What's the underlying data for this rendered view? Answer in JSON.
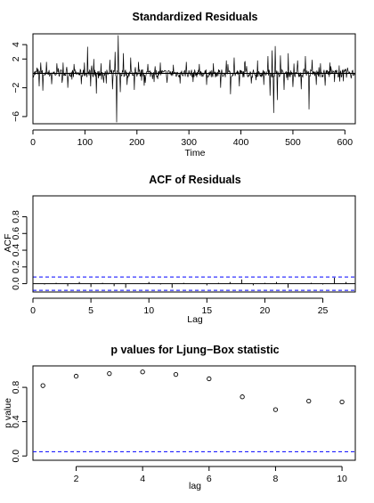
{
  "chart_data": [
    {
      "type": "line",
      "title": "Standardized Residuals",
      "xlabel": "Time",
      "ylabel": "",
      "xlim": [
        0,
        620
      ],
      "ylim": [
        -7,
        5.5
      ],
      "xticks": [
        0,
        100,
        200,
        300,
        400,
        500,
        600
      ],
      "yticks": [
        -6,
        -2,
        2,
        4
      ],
      "ytick_labels": [
        "−6",
        "−2",
        "2",
        "4"
      ],
      "reference_line": 0,
      "n": 620,
      "spikes": [
        {
          "x": 8,
          "y": 0.8
        },
        {
          "x": 12,
          "y": -1.8
        },
        {
          "x": 15,
          "y": 1.5
        },
        {
          "x": 19,
          "y": -2.4
        },
        {
          "x": 26,
          "y": 1.6
        },
        {
          "x": 36,
          "y": -1.5
        },
        {
          "x": 46,
          "y": 1.4
        },
        {
          "x": 56,
          "y": -1.3
        },
        {
          "x": 58,
          "y": 1.5
        },
        {
          "x": 67,
          "y": -2.0
        },
        {
          "x": 79,
          "y": 1.3
        },
        {
          "x": 93,
          "y": -1.5
        },
        {
          "x": 99,
          "y": 1.5
        },
        {
          "x": 105,
          "y": 3.7
        },
        {
          "x": 111,
          "y": -1.8
        },
        {
          "x": 117,
          "y": 2.0
        },
        {
          "x": 122,
          "y": -2.8
        },
        {
          "x": 131,
          "y": 1.4
        },
        {
          "x": 141,
          "y": -1.4
        },
        {
          "x": 148,
          "y": 1.9
        },
        {
          "x": 153,
          "y": -2.2
        },
        {
          "x": 158,
          "y": 3.0
        },
        {
          "x": 161,
          "y": -6.8
        },
        {
          "x": 164,
          "y": 5.3
        },
        {
          "x": 168,
          "y": -2.6
        },
        {
          "x": 174,
          "y": 2.8
        },
        {
          "x": 181,
          "y": -1.6
        },
        {
          "x": 188,
          "y": 2.2
        },
        {
          "x": 195,
          "y": -2.3
        },
        {
          "x": 203,
          "y": 1.6
        },
        {
          "x": 214,
          "y": -1.7
        },
        {
          "x": 221,
          "y": 1.3
        },
        {
          "x": 233,
          "y": -1.2
        },
        {
          "x": 245,
          "y": 1.5
        },
        {
          "x": 258,
          "y": -1.3
        },
        {
          "x": 270,
          "y": 1.2
        },
        {
          "x": 283,
          "y": -1.4
        },
        {
          "x": 295,
          "y": 1.6
        },
        {
          "x": 308,
          "y": -1.2
        },
        {
          "x": 320,
          "y": 1.3
        },
        {
          "x": 334,
          "y": -1.6
        },
        {
          "x": 347,
          "y": 1.4
        },
        {
          "x": 361,
          "y": -2.0
        },
        {
          "x": 372,
          "y": 1.8
        },
        {
          "x": 380,
          "y": -2.9
        },
        {
          "x": 387,
          "y": 2.2
        },
        {
          "x": 397,
          "y": -1.8
        },
        {
          "x": 408,
          "y": 1.7
        },
        {
          "x": 420,
          "y": -1.4
        },
        {
          "x": 432,
          "y": 1.8
        },
        {
          "x": 444,
          "y": -1.6
        },
        {
          "x": 452,
          "y": 2.4
        },
        {
          "x": 456,
          "y": -3.1
        },
        {
          "x": 460,
          "y": 3.2
        },
        {
          "x": 463,
          "y": -5.5
        },
        {
          "x": 466,
          "y": 3.8
        },
        {
          "x": 470,
          "y": -3.7
        },
        {
          "x": 476,
          "y": 2.5
        },
        {
          "x": 483,
          "y": -2.3
        },
        {
          "x": 491,
          "y": 2.8
        },
        {
          "x": 500,
          "y": -1.9
        },
        {
          "x": 509,
          "y": 1.8
        },
        {
          "x": 516,
          "y": -2.2
        },
        {
          "x": 524,
          "y": 2.4
        },
        {
          "x": 531,
          "y": -5.0
        },
        {
          "x": 537,
          "y": 1.9
        },
        {
          "x": 545,
          "y": -1.6
        },
        {
          "x": 553,
          "y": 1.4
        },
        {
          "x": 562,
          "y": -1.7
        },
        {
          "x": 571,
          "y": 1.5
        },
        {
          "x": 580,
          "y": -1.2
        },
        {
          "x": 589,
          "y": 1.1
        },
        {
          "x": 597,
          "y": -1.1
        },
        {
          "x": 605,
          "y": 0.8
        },
        {
          "x": 612,
          "y": -0.7
        }
      ]
    },
    {
      "type": "bar",
      "title": "ACF of Residuals",
      "xlabel": "Lag",
      "ylabel": "ACF",
      "xlim": [
        0,
        27.8
      ],
      "ylim": [
        -0.1,
        1.05
      ],
      "xticks": [
        0,
        5,
        10,
        15,
        20,
        25
      ],
      "yticks": [
        0.0,
        0.2,
        0.4,
        0.6,
        0.8
      ],
      "ytick_labels": [
        "0.0",
        "0.2",
        "0.4",
        "0.6",
        "0.8"
      ],
      "lags": [
        0,
        1,
        2,
        3,
        4,
        5,
        6,
        7,
        8,
        9,
        10,
        11,
        12,
        13,
        14,
        15,
        16,
        17,
        18,
        19,
        20,
        21,
        22,
        23,
        24,
        25,
        26,
        27
      ],
      "values": [
        1.0,
        -0.01,
        0.01,
        -0.03,
        0.02,
        -0.04,
        0.01,
        -0.03,
        -0.05,
        0.0,
        0.02,
        -0.01,
        -0.05,
        0.01,
        0.0,
        -0.02,
        0.01,
        0.02,
        0.05,
        -0.02,
        0.01,
        0.02,
        -0.05,
        0.0,
        0.01,
        -0.01,
        0.07,
        0.02
      ],
      "confidence_band": [
        -0.08,
        0.08
      ],
      "band_color": "#0000ff"
    },
    {
      "type": "scatter",
      "title": "p values for Ljung−Box statistic",
      "xlabel": "lag",
      "ylabel": "p value",
      "xlim": [
        0.7,
        10.4
      ],
      "ylim": [
        -0.05,
        1.05
      ],
      "xticks": [
        2,
        4,
        6,
        8,
        10
      ],
      "yticks": [
        0.0,
        0.4,
        0.8
      ],
      "ytick_labels": [
        "0.0",
        "0.4",
        "0.8"
      ],
      "x": [
        1,
        2,
        3,
        4,
        5,
        6,
        7,
        8,
        9,
        10
      ],
      "y": [
        0.82,
        0.93,
        0.96,
        0.98,
        0.95,
        0.9,
        0.69,
        0.54,
        0.64,
        0.63
      ],
      "threshold": 0.05,
      "threshold_color": "#0000ff"
    }
  ]
}
